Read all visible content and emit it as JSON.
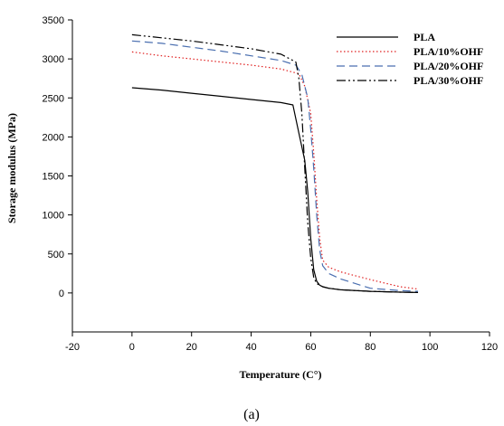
{
  "chart_data": {
    "type": "line",
    "title": "",
    "xlabel": "Temperature (C°)",
    "ylabel": "Storage modulus (MPa)",
    "caption": "(a)",
    "xlim": [
      -20,
      120
    ],
    "ylim": [
      -500,
      3500
    ],
    "xticks": [
      "-20",
      "0",
      "20",
      "40",
      "60",
      "80",
      "100",
      "120"
    ],
    "yticks": [
      "0",
      "500",
      "1000",
      "1500",
      "2000",
      "2500",
      "3000",
      "3500"
    ],
    "grid": false,
    "legend_position": "top-right",
    "series": [
      {
        "name": "PLA",
        "color": "#000000",
        "dash": "solid",
        "x": [
          0,
          10,
          20,
          30,
          40,
          50,
          54,
          56,
          58,
          59,
          60,
          61,
          62,
          63,
          64,
          66,
          70,
          80,
          90,
          96
        ],
        "y": [
          2630,
          2600,
          2560,
          2520,
          2480,
          2440,
          2410,
          2050,
          1700,
          1300,
          700,
          300,
          150,
          100,
          80,
          60,
          40,
          20,
          10,
          5
        ]
      },
      {
        "name": "PLA/10%OHF",
        "color": "#e02020",
        "dash": "dotted",
        "x": [
          0,
          10,
          20,
          30,
          40,
          50,
          56,
          58,
          60,
          61,
          62,
          63,
          64,
          66,
          70,
          80,
          90,
          96
        ],
        "y": [
          3090,
          3040,
          3000,
          2960,
          2920,
          2870,
          2810,
          2650,
          2300,
          1800,
          1200,
          700,
          420,
          330,
          270,
          170,
          80,
          50
        ]
      },
      {
        "name": "PLA/20%OHF",
        "color": "#4a6fb0",
        "dash": "dashed",
        "x": [
          0,
          10,
          20,
          30,
          40,
          50,
          55,
          57,
          59,
          60,
          61,
          62,
          63,
          64,
          66,
          70,
          80,
          90,
          96
        ],
        "y": [
          3230,
          3200,
          3150,
          3100,
          3040,
          2980,
          2920,
          2800,
          2500,
          2100,
          1600,
          1000,
          550,
          350,
          250,
          180,
          60,
          30,
          20
        ]
      },
      {
        "name": "PLA/30%OHF",
        "color": "#000000",
        "dash": "dashdotdot",
        "x": [
          0,
          10,
          20,
          30,
          40,
          50,
          55,
          56,
          57,
          58,
          59,
          60,
          61,
          62,
          64,
          66,
          70,
          80,
          90,
          96
        ],
        "y": [
          3310,
          3270,
          3230,
          3180,
          3130,
          3060,
          2960,
          2750,
          2300,
          1600,
          900,
          450,
          200,
          120,
          80,
          60,
          40,
          20,
          10,
          5
        ]
      }
    ]
  }
}
